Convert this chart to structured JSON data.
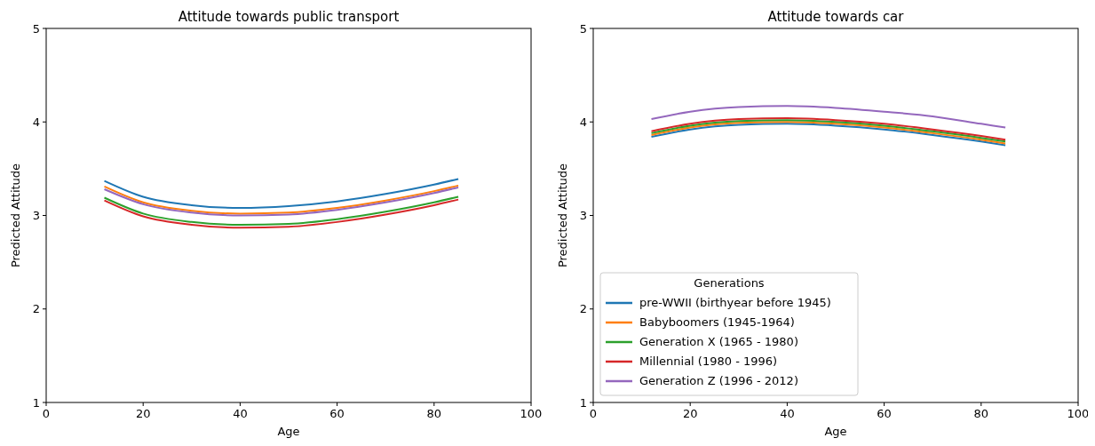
{
  "chart_data": [
    {
      "type": "line",
      "title": "Attitude towards public transport",
      "xlabel": "Age",
      "ylabel": "Predicted Attitude",
      "x": [
        12,
        20,
        30,
        40,
        50,
        60,
        70,
        80,
        85
      ],
      "xlim": [
        0,
        100
      ],
      "xticks": [
        0,
        20,
        40,
        60,
        80,
        100
      ],
      "ylim": [
        1,
        5
      ],
      "yticks": [
        1,
        2,
        3,
        4,
        5
      ],
      "grid": false,
      "legend": false,
      "series": [
        {
          "color": "#1f77b4",
          "values": [
            3.37,
            3.2,
            3.11,
            3.08,
            3.1,
            3.15,
            3.23,
            3.33,
            3.39
          ]
        },
        {
          "color": "#ff7f0e",
          "values": [
            3.31,
            3.14,
            3.05,
            3.02,
            3.03,
            3.08,
            3.16,
            3.26,
            3.32
          ]
        },
        {
          "color": "#2ca02c",
          "values": [
            3.19,
            3.02,
            2.93,
            2.9,
            2.91,
            2.96,
            3.04,
            3.14,
            3.2
          ]
        },
        {
          "color": "#d62728",
          "values": [
            3.16,
            2.99,
            2.9,
            2.87,
            2.88,
            2.93,
            3.01,
            3.11,
            3.17
          ]
        },
        {
          "color": "#9467bd",
          "values": [
            3.28,
            3.12,
            3.03,
            3.0,
            3.01,
            3.06,
            3.14,
            3.24,
            3.3
          ]
        }
      ]
    },
    {
      "type": "line",
      "title": "Attitude towards car",
      "xlabel": "Age",
      "ylabel": "Predicted Attitude",
      "legend_title": "Generations",
      "x": [
        12,
        20,
        30,
        40,
        50,
        60,
        70,
        80,
        85
      ],
      "xlim": [
        0,
        100
      ],
      "xticks": [
        0,
        20,
        40,
        60,
        80,
        100
      ],
      "ylim": [
        1,
        5
      ],
      "yticks": [
        1,
        2,
        3,
        4,
        5
      ],
      "grid": false,
      "legend": "bottom left",
      "series": [
        {
          "name": "pre-WWII (birthyear before 1945)",
          "color": "#1f77b4",
          "values": [
            3.84,
            3.92,
            3.97,
            3.98,
            3.96,
            3.92,
            3.86,
            3.79,
            3.75
          ]
        },
        {
          "name": "Babyboomers (1945-1964)",
          "color": "#ff7f0e",
          "values": [
            3.86,
            3.94,
            3.99,
            4.0,
            3.98,
            3.94,
            3.88,
            3.81,
            3.77
          ]
        },
        {
          "name": "Generation X (1965 - 1980)",
          "color": "#2ca02c",
          "values": [
            3.88,
            3.96,
            4.01,
            4.02,
            4.0,
            3.96,
            3.9,
            3.83,
            3.79
          ]
        },
        {
          "name": "Millennial (1980 - 1996)",
          "color": "#d62728",
          "values": [
            3.9,
            3.98,
            4.03,
            4.04,
            4.02,
            3.98,
            3.92,
            3.85,
            3.81
          ]
        },
        {
          "name": "Generation Z (1996 - 2012)",
          "color": "#9467bd",
          "values": [
            4.03,
            4.11,
            4.16,
            4.17,
            4.15,
            4.11,
            4.06,
            3.98,
            3.94
          ]
        }
      ]
    }
  ]
}
